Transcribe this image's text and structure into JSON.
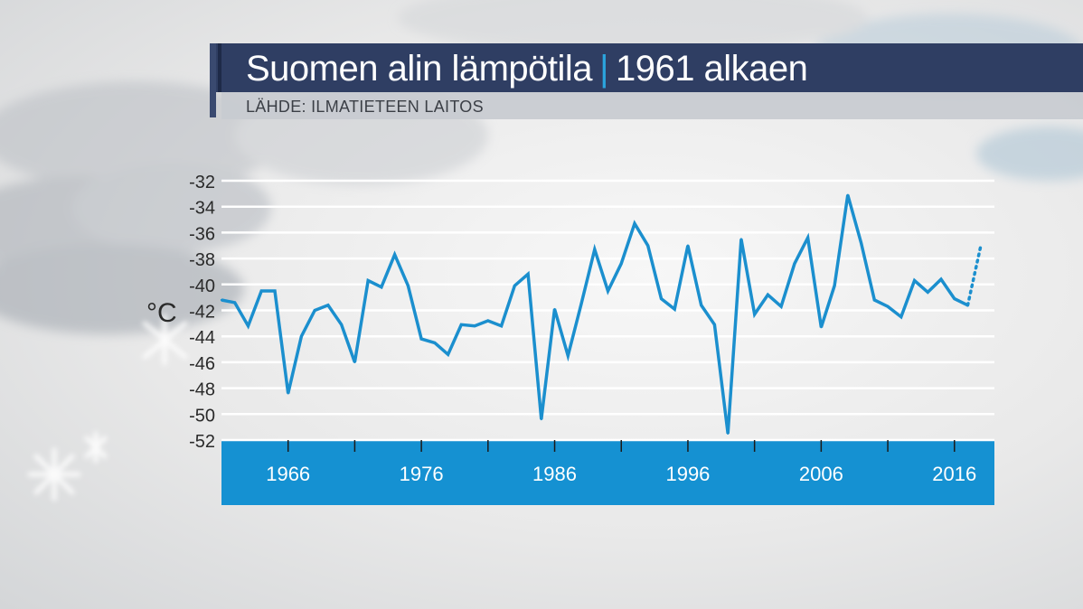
{
  "header": {
    "title_main": "Suomen alin lämpötila",
    "title_separator": "|",
    "title_sub": "1961 alkaen",
    "source": "LÄHDE: ILMATIETEEN LAITOS"
  },
  "colors": {
    "title_bar": "#2f3e63",
    "accent": "#2ba4dd",
    "axis_bar": "#1591d2",
    "line": "#1b8fce",
    "grid": "#ffffff"
  },
  "chart_data": {
    "type": "line",
    "title": "Suomen alin lämpötila | 1961 alkaen",
    "ylabel": "°C",
    "xlabel": "",
    "ylim": [
      -52,
      -32
    ],
    "yticks": [
      -32,
      -34,
      -36,
      -38,
      -40,
      -42,
      -44,
      -46,
      -48,
      -50,
      -52
    ],
    "xlim": [
      1961,
      2019
    ],
    "xticks": [
      1966,
      1976,
      1986,
      1996,
      2006,
      2016
    ],
    "grid": true,
    "x": [
      1961,
      1962,
      1963,
      1964,
      1965,
      1966,
      1967,
      1968,
      1969,
      1970,
      1971,
      1972,
      1973,
      1974,
      1975,
      1976,
      1977,
      1978,
      1979,
      1980,
      1981,
      1982,
      1983,
      1984,
      1985,
      1986,
      1987,
      1988,
      1989,
      1990,
      1991,
      1992,
      1993,
      1994,
      1995,
      1996,
      1997,
      1998,
      1999,
      2000,
      2001,
      2002,
      2003,
      2004,
      2005,
      2006,
      2007,
      2008,
      2009,
      2010,
      2011,
      2012,
      2013,
      2014,
      2015,
      2016,
      2017
    ],
    "values": [
      -41.2,
      -41.4,
      -43.2,
      -40.5,
      -40.5,
      -48.4,
      -44.0,
      -42.0,
      -41.6,
      -43.1,
      -46.0,
      -39.7,
      -40.2,
      -37.7,
      -40.1,
      -44.2,
      -44.5,
      -45.4,
      -43.1,
      -43.2,
      -42.8,
      -43.2,
      -40.1,
      -39.2,
      -50.4,
      -41.9,
      -45.5,
      -41.5,
      -37.3,
      -40.5,
      -38.4,
      -35.3,
      -37.0,
      -41.1,
      -41.9,
      -37.0,
      -41.6,
      -43.1,
      -51.5,
      -36.5,
      -42.3,
      -40.8,
      -41.7,
      -38.4,
      -36.4,
      -43.3,
      -40.1,
      -33.1,
      -36.8,
      -41.2,
      -41.7,
      -42.5,
      -39.7,
      -40.6,
      -39.6,
      -41.1,
      -41.6
    ],
    "projection": {
      "x": [
        2017,
        2018
      ],
      "values": [
        -41.6,
        -36.9
      ],
      "style": "dotted"
    }
  }
}
